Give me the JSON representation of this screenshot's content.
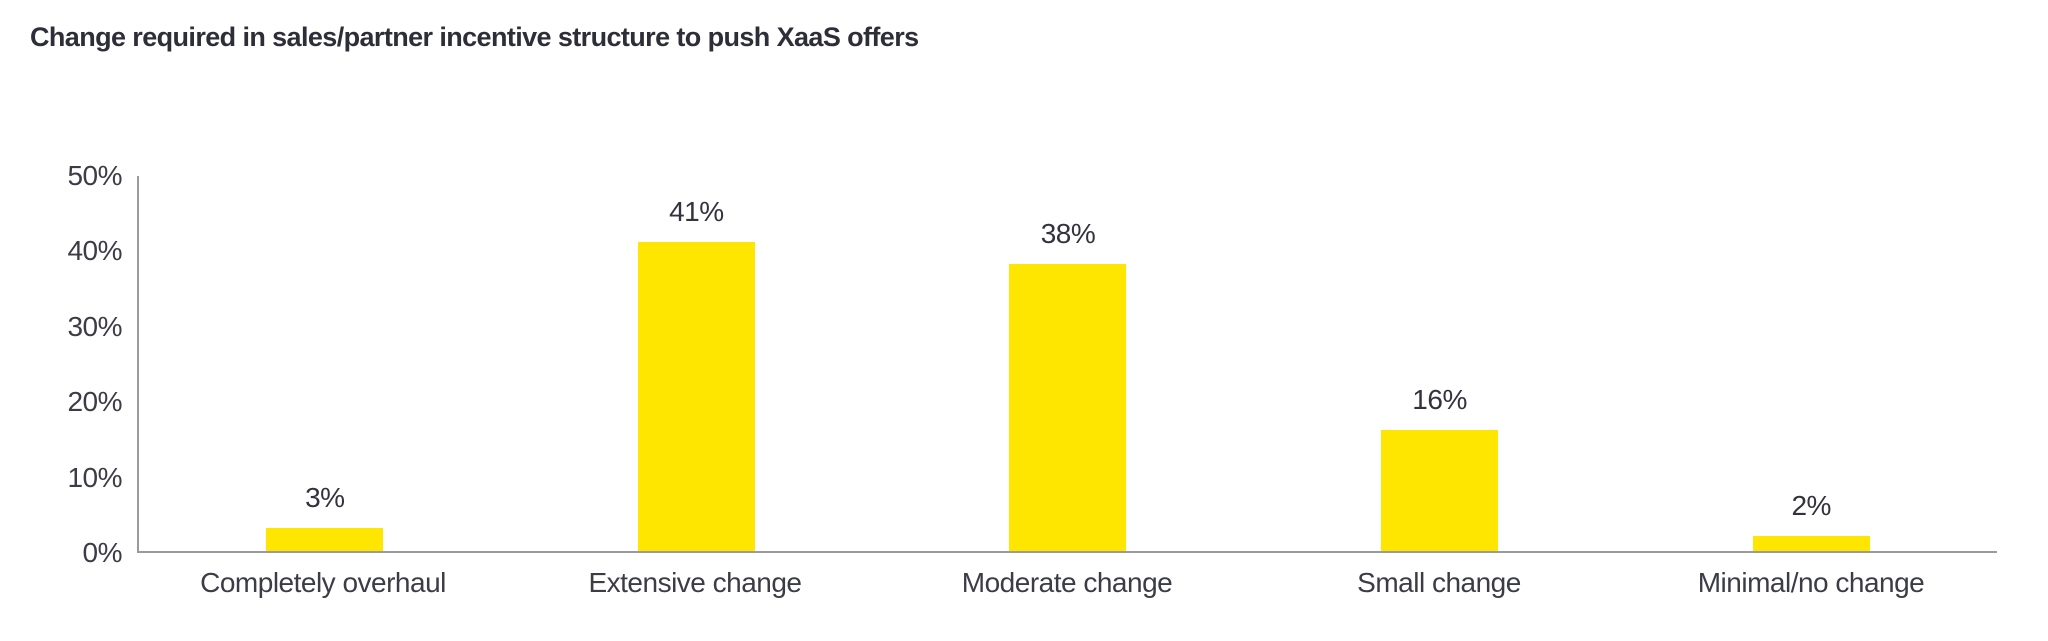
{
  "title": "Change required in sales/partner incentive structure to push XaaS offers",
  "colors": {
    "bar": "#FFE600",
    "title_text": "#2E2E38",
    "axis_text": "#3C3C46",
    "axis_line": "#9B9B9F",
    "background": "#FFFFFF"
  },
  "chart_data": {
    "type": "bar",
    "title": "Change required in sales/partner incentive structure to push XaaS offers",
    "categories": [
      "Completely overhaul",
      "Extensive change",
      "Moderate change",
      "Small change",
      "Minimal/no change"
    ],
    "values": [
      3,
      41,
      38,
      16,
      2
    ],
    "data_labels": [
      "3%",
      "41%",
      "38%",
      "16%",
      "2%"
    ],
    "xlabel": "",
    "ylabel": "",
    "ylim": [
      0,
      50
    ],
    "ytick_values": [
      0,
      10,
      20,
      30,
      40,
      50
    ],
    "ytick_labels": [
      "0%",
      "10%",
      "20%",
      "30%",
      "40%",
      "50%"
    ],
    "grid": false,
    "legend": false,
    "bar_color": "#FFE600"
  }
}
